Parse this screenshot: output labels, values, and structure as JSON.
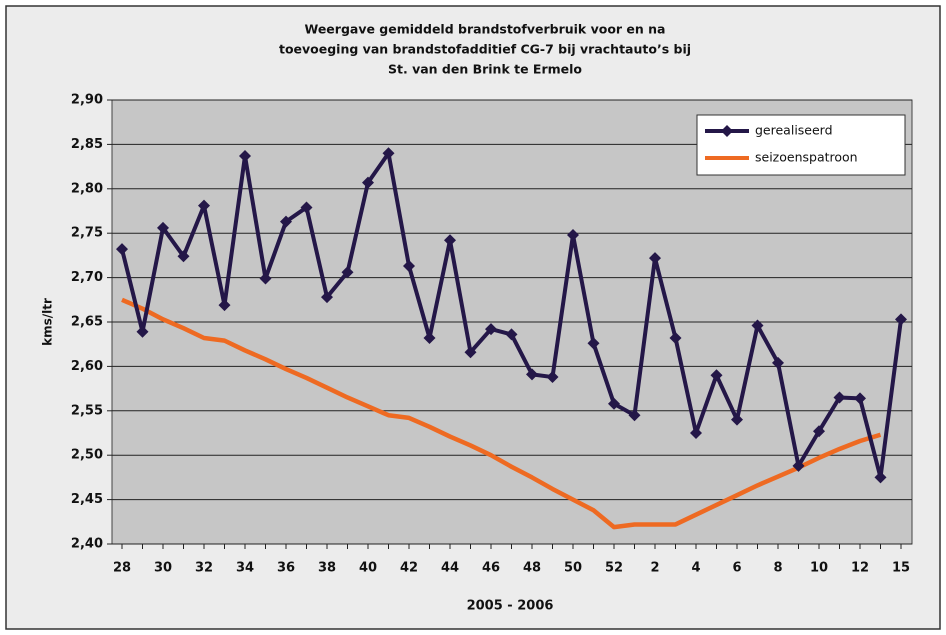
{
  "chart_data": {
    "type": "line",
    "title": [
      "Weergave gemiddeld brandstofverbruik voor en na",
      "toevoeging van brandstofadditief CG-7 bij vrachtauto’s bij",
      "St. van den Brink te Ermelo"
    ],
    "xlabel": "2005 - 2006",
    "ylabel": "kms/ltr",
    "categories": [
      "28",
      null,
      "30",
      null,
      "32",
      null,
      "34",
      null,
      "36",
      null,
      "38",
      null,
      "40",
      null,
      "42",
      null,
      "44",
      null,
      "46",
      null,
      "48",
      null,
      "50",
      null,
      "52",
      null,
      "2",
      null,
      "4",
      null,
      "6",
      null,
      "8",
      null,
      "10",
      null,
      "12",
      null,
      "15"
    ],
    "series": [
      {
        "name": "gerealiseerd",
        "color": "#241748",
        "marker": "diamond",
        "values": [
          2.732,
          2.639,
          2.756,
          2.724,
          2.781,
          2.669,
          2.837,
          2.699,
          2.763,
          2.779,
          2.678,
          2.706,
          2.807,
          2.84,
          2.713,
          2.632,
          2.742,
          2.616,
          2.642,
          2.636,
          2.591,
          2.588,
          2.748,
          2.626,
          2.558,
          2.545,
          2.722,
          2.632,
          2.525,
          2.59,
          2.54,
          2.646,
          2.604,
          2.488,
          2.527,
          2.565,
          2.564,
          2.475,
          2.653
        ]
      },
      {
        "name": "seizoenspatroon",
        "color": "#ee6a22",
        "values": [
          2.675,
          2.665,
          2.653,
          2.643,
          2.632,
          2.629,
          2.618,
          2.608,
          2.597,
          2.587,
          2.576,
          2.565,
          2.555,
          2.545,
          2.542,
          2.532,
          2.521,
          2.511,
          2.5,
          2.487,
          2.475,
          2.462,
          2.45,
          2.438,
          2.419,
          2.422,
          2.422,
          2.422,
          2.433,
          2.444,
          2.455,
          2.466,
          2.476,
          2.486,
          2.497,
          2.507,
          2.516,
          2.523,
          null
        ]
      }
    ],
    "ylim": [
      2.4,
      2.9
    ],
    "yticks": [
      {
        "value": 2.4,
        "label": "2,40"
      },
      {
        "value": 2.45,
        "label": "2,45"
      },
      {
        "value": 2.5,
        "label": "2,50"
      },
      {
        "value": 2.55,
        "label": "2,55"
      },
      {
        "value": 2.6,
        "label": "2,60"
      },
      {
        "value": 2.65,
        "label": "2,65"
      },
      {
        "value": 2.7,
        "label": "2,70"
      },
      {
        "value": 2.75,
        "label": "2,75"
      },
      {
        "value": 2.8,
        "label": "2,80"
      },
      {
        "value": 2.85,
        "label": "2,85"
      },
      {
        "value": 2.9,
        "label": "2,90"
      }
    ],
    "grid": true,
    "legend": "upper right"
  }
}
